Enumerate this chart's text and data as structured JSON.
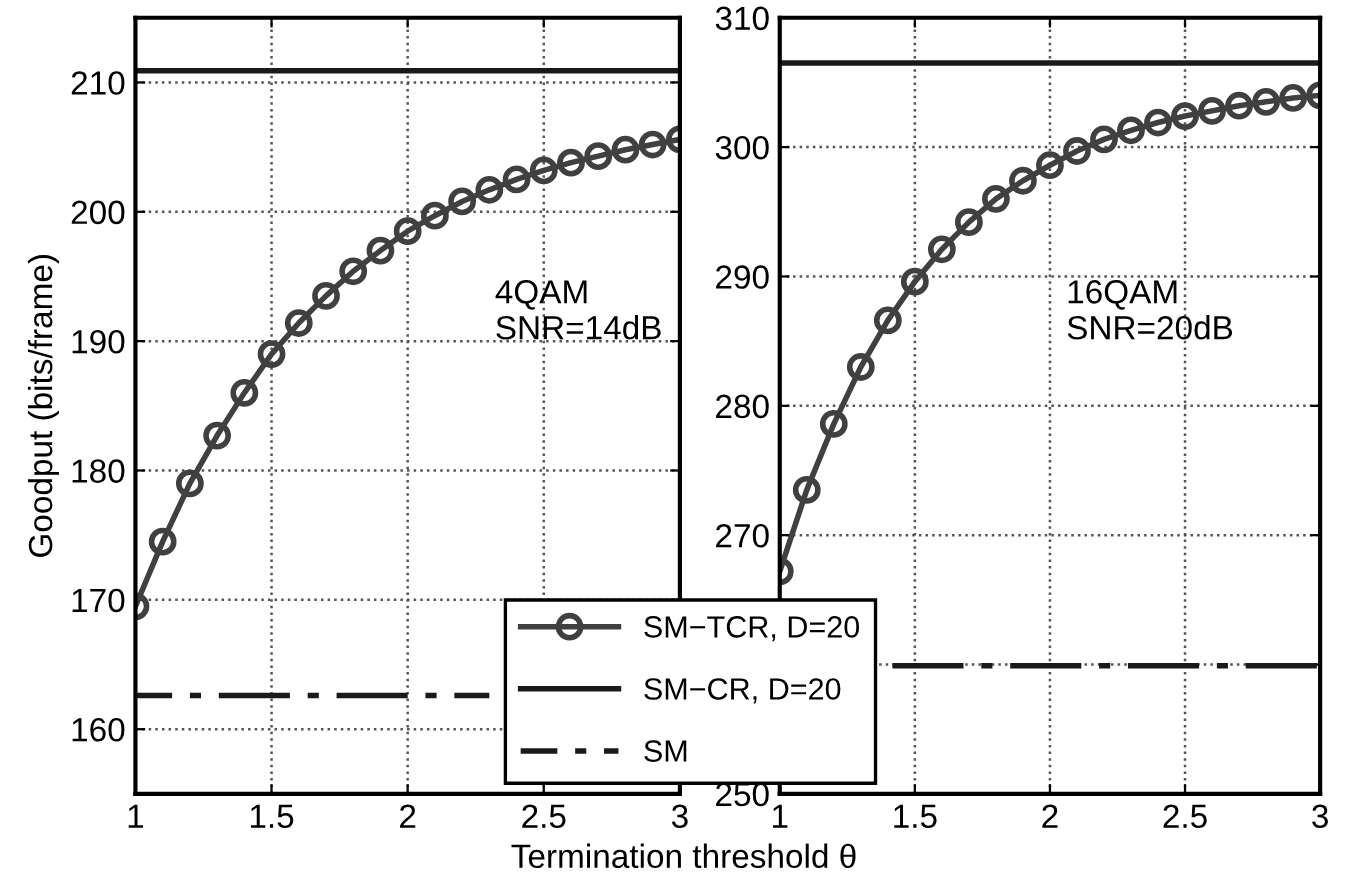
{
  "chart_data": [
    {
      "type": "line",
      "xlabel": "Termination threshold θ",
      "ylabel": "Goodput (bits/frame)",
      "annotations": [
        "4QAM\nSNR=14dB"
      ],
      "x": [
        1,
        1.1,
        1.2,
        1.3,
        1.4,
        1.5,
        1.6,
        1.7,
        1.8,
        1.9,
        2,
        2.1,
        2.2,
        2.3,
        2.4,
        2.5,
        2.6,
        2.7,
        2.8,
        2.9,
        3
      ],
      "series": [
        {
          "name": "SM−TCR, D=20",
          "color": "#404040",
          "marker": "circle",
          "line_style": "solid",
          "values": [
            169.5,
            174.5,
            179,
            182.7,
            186,
            189,
            191.4,
            193.5,
            195.4,
            197,
            198.5,
            199.7,
            200.8,
            201.7,
            202.5,
            203.2,
            203.8,
            204.3,
            204.8,
            205.2,
            205.6
          ]
        },
        {
          "name": "SM−CR, D=20",
          "color": "#1a1a1a",
          "marker": "none",
          "line_style": "solid",
          "values": [
            210.9,
            210.9,
            210.9,
            210.9,
            210.9,
            210.9,
            210.9,
            210.9,
            210.9,
            210.9,
            210.9,
            210.9,
            210.9,
            210.9,
            210.9,
            210.9,
            210.9,
            210.9,
            210.9,
            210.9,
            210.9
          ]
        },
        {
          "name": "SM",
          "color": "#1a1a1a",
          "marker": "none",
          "line_style": "dashdot",
          "values": [
            162.6,
            162.6,
            162.6,
            162.6,
            162.6,
            162.6,
            162.6,
            162.6,
            162.6,
            162.6,
            162.6,
            162.6,
            162.6,
            162.6,
            null,
            null,
            null,
            null,
            null,
            null,
            null
          ]
        }
      ],
      "xlim": [
        1,
        3
      ],
      "xticks": [
        1,
        1.5,
        2,
        2.5,
        3
      ],
      "ylim": [
        155,
        215
      ],
      "yticks": [
        160,
        170,
        180,
        190,
        200,
        210
      ],
      "grid": true,
      "legend": "bottom right"
    },
    {
      "type": "line",
      "annotations": [
        "16QAM\nSNR=20dB"
      ],
      "x": [
        1,
        1.1,
        1.2,
        1.3,
        1.4,
        1.5,
        1.6,
        1.7,
        1.8,
        1.9,
        2,
        2.1,
        2.2,
        2.3,
        2.4,
        2.5,
        2.6,
        2.7,
        2.8,
        2.9,
        3
      ],
      "series": [
        {
          "color": "#404040",
          "marker": "circle",
          "line_style": "solid",
          "values": [
            267.2,
            273.5,
            278.6,
            283,
            286.6,
            289.6,
            292.1,
            294.2,
            296,
            297.4,
            298.6,
            299.7,
            300.6,
            301.3,
            301.9,
            302.4,
            302.8,
            303.2,
            303.5,
            303.8,
            304.0
          ]
        },
        {
          "color": "#1a1a1a",
          "marker": "none",
          "line_style": "solid",
          "values": [
            306.5,
            306.5,
            306.5,
            306.5,
            306.5,
            306.5,
            306.5,
            306.5,
            306.5,
            306.5,
            306.5,
            306.5,
            306.5,
            306.5,
            306.5,
            306.5,
            306.5,
            306.5,
            306.5,
            306.5,
            306.5
          ]
        },
        {
          "color": "#1a1a1a",
          "marker": "none",
          "line_style": "dashdot",
          "values": [
            null,
            null,
            null,
            null,
            259.9,
            259.9,
            259.9,
            259.9,
            259.9,
            259.9,
            259.9,
            259.9,
            259.9,
            259.9,
            259.9,
            259.9,
            259.9,
            259.9,
            259.9,
            259.9,
            259.9
          ]
        }
      ],
      "xlim": [
        1,
        3
      ],
      "xticks": [
        1,
        1.5,
        2,
        2.5,
        3
      ],
      "ylim": [
        250,
        310
      ],
      "yticks": [
        250,
        {
          "value": 260,
          "label": null
        },
        270,
        280,
        290,
        300,
        310
      ],
      "grid": true
    }
  ]
}
